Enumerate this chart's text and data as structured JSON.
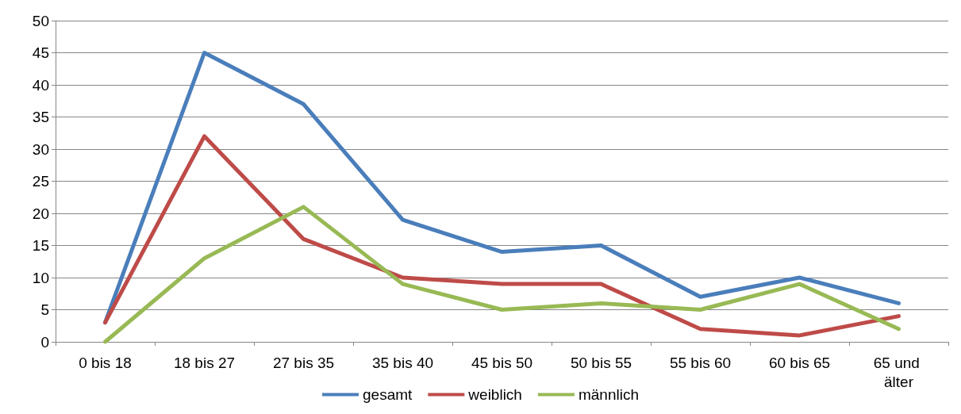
{
  "chart_data": {
    "type": "line",
    "categories": [
      "0 bis 18",
      "18 bis 27",
      "27 bis 35",
      "35 bis 40",
      "45 bis 50",
      "50 bis 55",
      "55 bis 60",
      "60 bis 65",
      "65 und älter"
    ],
    "series": [
      {
        "name": "gesamt",
        "color": "#4a7ebb",
        "values": [
          3,
          45,
          37,
          19,
          14,
          15,
          7,
          10,
          6
        ]
      },
      {
        "name": "weiblich",
        "color": "#be4b48",
        "values": [
          3,
          32,
          16,
          10,
          9,
          9,
          2,
          1,
          4
        ]
      },
      {
        "name": "männlich",
        "color": "#98b954",
        "values": [
          0,
          13,
          21,
          9,
          5,
          6,
          5,
          9,
          2
        ]
      }
    ],
    "ylim": [
      0,
      50
    ],
    "yticks": [
      0,
      5,
      10,
      15,
      20,
      25,
      30,
      35,
      40,
      45,
      50
    ],
    "grid": "y",
    "legend": "bottom",
    "marker": "none",
    "line_style": "solid"
  }
}
